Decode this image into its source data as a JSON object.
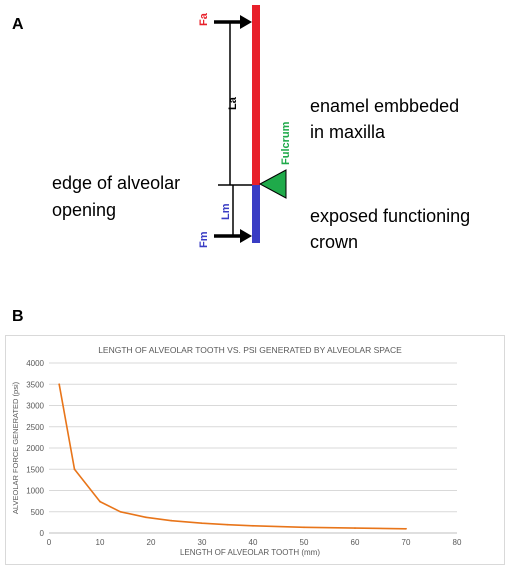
{
  "panel_a_label": "A",
  "panel_b_label": "B",
  "diagram": {
    "fa_label": "Fa",
    "la_label": "La",
    "fulcrum_label": "Fulcrum",
    "lm_label": "Lm",
    "fm_label": "Fm",
    "enamel_line1": "enamel embbeded",
    "enamel_line2": "in maxilla",
    "edge_line1": "edge of alveolar",
    "edge_line2": "opening",
    "exposed_line1": "exposed functioning",
    "exposed_line2": "crown",
    "colors": {
      "enamel": "#e8202a",
      "crown": "#3a3dc4",
      "fulcrum": "#1faa4a"
    }
  },
  "chart_data": {
    "type": "line",
    "title": "LENGTH OF ALVEOLAR TOOTH VS. PSI GENERATED BY ALVEOLAR SPACE",
    "xlabel": "LENGTH OF ALVEOLAR TOOTH (mm)",
    "ylabel": "ALVEOLAR FORCE GENERATED (psi)",
    "xlim": [
      0,
      80
    ],
    "ylim": [
      0,
      4000
    ],
    "xticks": [
      0,
      10,
      20,
      30,
      40,
      50,
      60,
      70,
      80
    ],
    "yticks": [
      0,
      500,
      1000,
      1500,
      2000,
      2500,
      3000,
      3500,
      4000
    ],
    "grid": true,
    "line_color": "#e8751a",
    "series": [
      {
        "x": [
          2,
          5,
          10,
          14,
          19,
          24,
          30,
          35,
          40,
          50,
          60,
          70
        ],
        "y": [
          3500,
          1500,
          740,
          500,
          370,
          290,
          230,
          195,
          170,
          135,
          115,
          100
        ]
      }
    ]
  }
}
